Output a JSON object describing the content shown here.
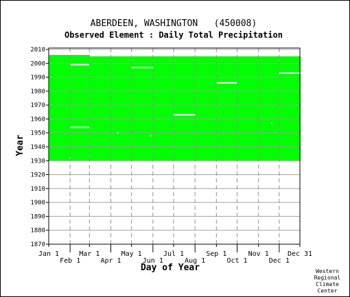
{
  "chart_data": {
    "type": "heatmap",
    "title": "ABERDEEN, WASHINGTON   (450008)",
    "subtitle": "Observed Element : Daily Total Precipitation",
    "xlabel": "Day of Year",
    "ylabel": "Year",
    "xlim": [
      1,
      365
    ],
    "ylim": [
      1870,
      2011
    ],
    "x_ticks": [
      {
        "label": "Jan 1",
        "day": 1,
        "row": "top"
      },
      {
        "label": "Feb 1",
        "day": 32,
        "row": "bottom"
      },
      {
        "label": "Mar 1",
        "day": 60,
        "row": "top"
      },
      {
        "label": "Apr 1",
        "day": 91,
        "row": "bottom"
      },
      {
        "label": "May 1",
        "day": 121,
        "row": "top"
      },
      {
        "label": "Jun 1",
        "day": 152,
        "row": "bottom"
      },
      {
        "label": "Jul 1",
        "day": 182,
        "row": "top"
      },
      {
        "label": "Aug 1",
        "day": 213,
        "row": "bottom"
      },
      {
        "label": "Sep 1",
        "day": 244,
        "row": "top"
      },
      {
        "label": "Oct 1",
        "day": 274,
        "row": "bottom"
      },
      {
        "label": "Nov 1",
        "day": 305,
        "row": "top"
      },
      {
        "label": "Dec 1",
        "day": 335,
        "row": "bottom"
      },
      {
        "label": "Dec 31",
        "day": 365,
        "row": "top"
      }
    ],
    "y_ticks": [
      1870,
      1880,
      1890,
      1900,
      1910,
      1920,
      1930,
      1940,
      1950,
      1960,
      1970,
      1980,
      1990,
      2000,
      2010
    ],
    "grid": true,
    "data_color": "#00ff00",
    "coverage": [
      {
        "day_start": 1,
        "day_end": 59,
        "year_start": 1930,
        "year_end": 2006
      },
      {
        "day_start": 60,
        "day_end": 365,
        "year_start": 1930,
        "year_end": 2005
      }
    ],
    "missing": [
      {
        "day_start": 32,
        "day_end": 59,
        "year": 1999
      },
      {
        "day_start": 32,
        "day_end": 59,
        "year": 1954
      },
      {
        "day_start": 121,
        "day_end": 151,
        "year": 1997
      },
      {
        "day_start": 182,
        "day_end": 212,
        "year": 1963
      },
      {
        "day_start": 244,
        "day_end": 273,
        "year": 1986
      },
      {
        "day_start": 335,
        "day_end": 365,
        "year": 1993
      },
      {
        "day_start": 100,
        "day_end": 101,
        "year": 1950
      },
      {
        "day_start": 148,
        "day_end": 149,
        "year": 1948
      },
      {
        "day_start": 323,
        "day_end": 324,
        "year": 1957
      },
      {
        "day_start": 31,
        "day_end": 32,
        "year": 1932
      }
    ]
  },
  "credit": [
    "Western",
    "Regional",
    "Climate",
    "Center"
  ]
}
